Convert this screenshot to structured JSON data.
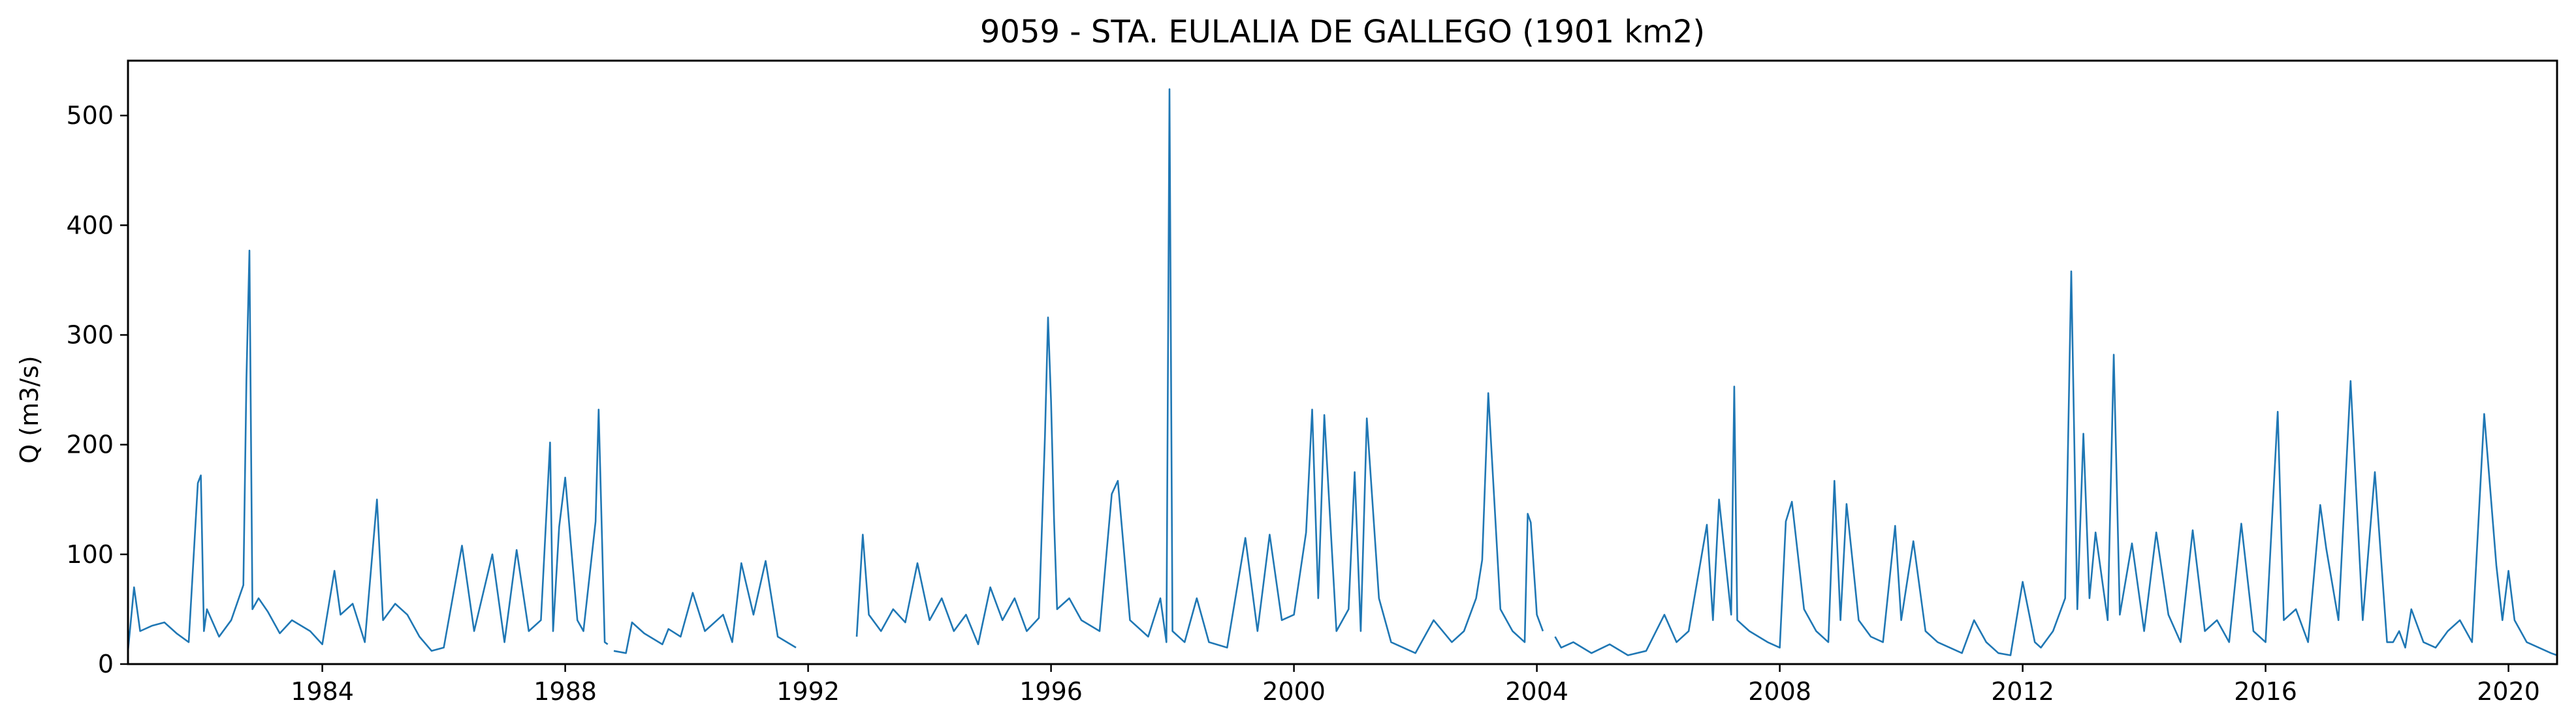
{
  "chart_data": {
    "type": "line",
    "title": "9059 - STA. EULALIA DE GALLEGO (1901 km2)",
    "xlabel": "",
    "ylabel": "Q (m3/s)",
    "xlim": [
      1980.8,
      2020.8
    ],
    "ylim": [
      0,
      550
    ],
    "x_ticks": [
      1984,
      1988,
      1992,
      1996,
      2000,
      2004,
      2008,
      2012,
      2016,
      2020
    ],
    "y_ticks": [
      0,
      100,
      200,
      300,
      400,
      500
    ],
    "grid": false,
    "color": "#1f77b4",
    "series": [
      {
        "x": [
          1980.8,
          1980.9,
          1981.0,
          1981.2,
          1981.4,
          1981.6,
          1981.8,
          1981.95,
          1982.0,
          1982.05,
          1982.1,
          1982.3,
          1982.5,
          1982.7,
          1982.75,
          1982.8,
          1982.85,
          1982.95,
          1983.1,
          1983.3,
          1983.5,
          1983.8,
          1984.0,
          1984.2,
          1984.3,
          1984.5,
          1984.7,
          1984.9,
          1985.0,
          1985.2,
          1985.4,
          1985.6,
          1985.8,
          1986.0,
          1986.3,
          1986.5,
          1986.8,
          1987.0,
          1987.2,
          1987.4,
          1987.6,
          1987.75,
          1987.8,
          1987.9,
          1988.0,
          1988.2,
          1988.3,
          1988.5,
          1988.55,
          1988.65,
          1988.7
        ],
        "y": [
          12,
          70,
          30,
          35,
          38,
          28,
          20,
          165,
          172,
          30,
          50,
          25,
          40,
          72,
          260,
          377,
          50,
          60,
          48,
          28,
          40,
          30,
          18,
          85,
          45,
          55,
          20,
          150,
          40,
          55,
          45,
          25,
          12,
          15,
          108,
          30,
          100,
          20,
          104,
          30,
          40,
          202,
          30,
          125,
          170,
          40,
          30,
          130,
          232,
          20,
          18
        ]
      },
      {
        "x": [
          1988.8,
          1989.0,
          1989.1,
          1989.3,
          1989.6,
          1989.7,
          1989.9,
          1990.1,
          1990.3,
          1990.6,
          1990.75,
          1990.9,
          1991.1,
          1991.3,
          1991.5,
          1991.8
        ],
        "y": [
          12,
          10,
          38,
          28,
          18,
          32,
          25,
          65,
          30,
          45,
          20,
          92,
          45,
          94,
          25,
          15
        ]
      },
      {
        "x": [
          1992.8,
          1992.9,
          1993.0,
          1993.2,
          1993.4,
          1993.6,
          1993.8,
          1994.0,
          1994.2,
          1994.4,
          1994.6,
          1994.8,
          1995.0,
          1995.2,
          1995.4,
          1995.6,
          1995.8,
          1995.9,
          1995.95,
          1996.0,
          1996.05,
          1996.1,
          1996.3,
          1996.5,
          1996.8,
          1997.0,
          1997.1,
          1997.3,
          1997.6,
          1997.8,
          1997.9,
          1997.95,
          1998.0,
          1998.2,
          1998.4,
          1998.6,
          1998.9,
          1999.2,
          1999.4,
          1999.6,
          1999.8,
          2000.0,
          2000.2,
          2000.3,
          2000.4,
          2000.5,
          2000.7,
          2000.9,
          2001.0,
          2001.1,
          2001.2,
          2001.4,
          2001.6,
          2001.8,
          2002.0,
          2002.3,
          2002.6,
          2002.8,
          2003.0,
          2003.1,
          2003.2,
          2003.4,
          2003.6,
          2003.8,
          2003.85,
          2003.9,
          2004.0,
          2004.1
        ],
        "y": [
          25,
          118,
          45,
          30,
          50,
          38,
          92,
          40,
          60,
          30,
          45,
          18,
          70,
          40,
          60,
          30,
          42,
          208,
          316,
          240,
          130,
          50,
          60,
          40,
          30,
          155,
          167,
          40,
          25,
          60,
          20,
          524,
          30,
          20,
          60,
          20,
          15,
          115,
          30,
          118,
          40,
          45,
          120,
          232,
          60,
          227,
          30,
          50,
          175,
          30,
          224,
          60,
          20,
          15,
          10,
          40,
          20,
          30,
          60,
          95,
          247,
          50,
          30,
          20,
          137,
          129,
          45,
          30
        ]
      },
      {
        "x": [
          2004.3,
          2004.4,
          2004.6,
          2004.9,
          2005.2,
          2005.5,
          2005.8,
          2006.1,
          2006.3,
          2006.5,
          2006.8,
          2006.9,
          2007.0,
          2007.2,
          2007.25,
          2007.3,
          2007.5,
          2007.8,
          2008.0,
          2008.1,
          2008.2,
          2008.4,
          2008.6,
          2008.8,
          2008.9,
          2009.0,
          2009.1,
          2009.3,
          2009.5,
          2009.7,
          2009.9,
          2010.0,
          2010.2,
          2010.4,
          2010.6,
          2010.8,
          2011.0,
          2011.2,
          2011.4,
          2011.6,
          2011.8,
          2012.0,
          2012.2,
          2012.3,
          2012.5,
          2012.7,
          2012.8,
          2012.9,
          2013.0,
          2013.1,
          2013.2,
          2013.4,
          2013.5,
          2013.6,
          2013.8,
          2014.0,
          2014.2,
          2014.4,
          2014.6,
          2014.8,
          2015.0,
          2015.2,
          2015.4,
          2015.6,
          2015.8,
          2016.0,
          2016.2,
          2016.3,
          2016.5,
          2016.7,
          2016.9,
          2017.0,
          2017.2,
          2017.4,
          2017.6,
          2017.8,
          2018.0,
          2018.1,
          2018.2,
          2018.3,
          2018.4,
          2018.6,
          2018.8,
          2019.0,
          2019.2,
          2019.4,
          2019.6,
          2019.8,
          2019.9,
          2020.0,
          2020.1,
          2020.2,
          2020.3,
          2020.5,
          2020.7,
          2020.8
        ],
        "y": [
          25,
          15,
          20,
          10,
          18,
          8,
          12,
          45,
          20,
          30,
          127,
          40,
          150,
          45,
          253,
          40,
          30,
          20,
          15,
          130,
          148,
          50,
          30,
          20,
          167,
          40,
          146,
          40,
          25,
          20,
          126,
          40,
          112,
          30,
          20,
          15,
          10,
          40,
          20,
          10,
          8,
          75,
          20,
          15,
          30,
          60,
          358,
          50,
          210,
          60,
          120,
          40,
          282,
          45,
          110,
          30,
          120,
          45,
          20,
          122,
          30,
          40,
          20,
          128,
          30,
          20,
          230,
          40,
          50,
          20,
          145,
          105,
          40,
          258,
          40,
          175,
          20,
          20,
          30,
          15,
          50,
          20,
          15,
          30,
          40,
          20,
          228,
          90,
          40,
          85,
          40,
          30,
          20,
          15,
          10,
          8
        ]
      }
    ]
  }
}
